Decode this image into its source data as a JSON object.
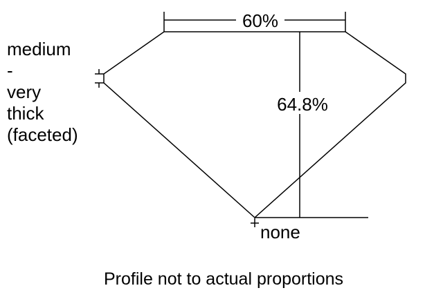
{
  "diagram": {
    "table_label": "60%",
    "depth_label": "64.8%",
    "girdle_label_lines": [
      "medium",
      "-",
      "very",
      "thick",
      "(faceted)"
    ],
    "culet_label": "none",
    "footer": "Profile not to actual proportions"
  }
}
